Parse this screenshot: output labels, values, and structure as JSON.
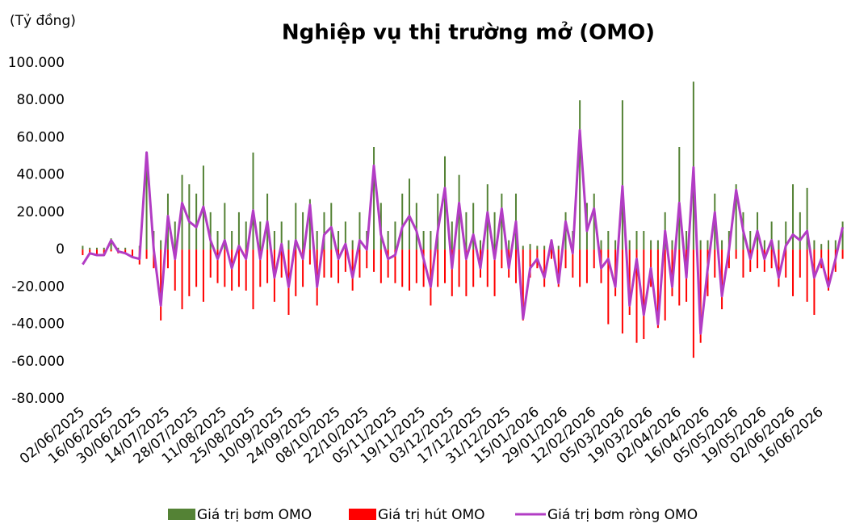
{
  "chart_data": {
    "type": "bar",
    "title": "Nghiệp vụ thị trường mở (OMO)",
    "ylabel": "(Tỷ đồng)",
    "ylim": [
      -80000,
      100000
    ],
    "yticks": [
      {
        "value": -80000,
        "label": "-80.000"
      },
      {
        "value": -60000,
        "label": "-60.000"
      },
      {
        "value": -40000,
        "label": "-40.000"
      },
      {
        "value": -20000,
        "label": "-20.000"
      },
      0,
      {
        "value": 20000,
        "label": "20.000"
      },
      {
        "value": 40000,
        "label": "40.000"
      },
      {
        "value": 60000,
        "label": "60.000"
      },
      {
        "value": 80000,
        "label": "80.000"
      },
      {
        "value": 100000,
        "label": "100.000"
      }
    ],
    "categories": [
      "02/06/2025",
      null,
      null,
      null,
      "16/06/2025",
      null,
      null,
      null,
      "30/06/2025",
      null,
      null,
      null,
      "14/07/2025",
      null,
      null,
      null,
      "28/07/2025",
      null,
      null,
      null,
      "11/08/2025",
      null,
      null,
      null,
      "25/08/2025",
      null,
      null,
      null,
      "10/09/2025",
      null,
      null,
      null,
      "24/09/2025",
      null,
      null,
      null,
      "08/10/2025",
      null,
      null,
      null,
      "22/10/2025",
      null,
      null,
      null,
      "05/11/2025",
      null,
      null,
      null,
      "19/11/2025",
      null,
      null,
      null,
      "03/12/2025",
      null,
      null,
      null,
      "17/12/2025",
      null,
      null,
      null,
      "31/12/2025",
      null,
      null,
      null,
      "15/01/2026",
      null,
      null,
      null,
      "29/01/2026",
      null,
      null,
      null,
      "12/02/2026",
      null,
      null,
      null,
      "05/03/2026",
      null,
      null,
      null,
      "19/03/2026",
      null,
      null,
      null,
      "02/04/2026",
      null,
      null,
      null,
      "16/04/2026",
      null,
      null,
      null,
      "05/05/2026",
      null,
      null,
      null,
      "19/05/2026",
      null,
      null,
      null,
      "02/06/2026",
      null,
      null,
      null,
      "16/06/2026",
      null,
      null,
      null
    ],
    "series": [
      {
        "name": "Giá trị bơm OMO",
        "type": "bar",
        "color": "#548235",
        "values": [
          2000,
          1000,
          1000,
          1000,
          6000,
          1000,
          1000,
          0,
          2000,
          52000,
          10000,
          5000,
          30000,
          15000,
          40000,
          35000,
          30000,
          45000,
          20000,
          10000,
          25000,
          10000,
          20000,
          15000,
          52000,
          15000,
          30000,
          10000,
          15000,
          5000,
          25000,
          20000,
          27000,
          10000,
          20000,
          25000,
          10000,
          15000,
          5000,
          20000,
          10000,
          55000,
          25000,
          10000,
          15000,
          30000,
          38000,
          25000,
          10000,
          10000,
          30000,
          50000,
          15000,
          40000,
          20000,
          25000,
          5000,
          35000,
          20000,
          30000,
          5000,
          30000,
          2000,
          3000,
          2000,
          2000,
          3000,
          2000,
          20000,
          10000,
          80000,
          25000,
          30000,
          5000,
          10000,
          5000,
          80000,
          5000,
          10000,
          10000,
          5000,
          5000,
          20000,
          5000,
          55000,
          10000,
          90000,
          5000,
          5000,
          30000,
          5000,
          10000,
          35000,
          20000,
          10000,
          20000,
          5000,
          15000,
          5000,
          15000,
          35000,
          20000,
          33000,
          5000,
          3000,
          5000,
          5000,
          15000
        ]
      },
      {
        "name": "Giá trị hút OMO",
        "type": "bar",
        "color": "#ff0000",
        "values": [
          -3000,
          -2000,
          -3000,
          -3000,
          -1000,
          -2000,
          -2000,
          -4000,
          -8000,
          -5000,
          -10000,
          -38000,
          -10000,
          -22000,
          -32000,
          -25000,
          -20000,
          -28000,
          -15000,
          -18000,
          -20000,
          -22000,
          -20000,
          -22000,
          -32000,
          -20000,
          -18000,
          -28000,
          -15000,
          -35000,
          -25000,
          -20000,
          -8000,
          -30000,
          -15000,
          -15000,
          -18000,
          -12000,
          -22000,
          -15000,
          -10000,
          -12000,
          -18000,
          -15000,
          -18000,
          -20000,
          -22000,
          -18000,
          -20000,
          -30000,
          -20000,
          -18000,
          -25000,
          -20000,
          -25000,
          -20000,
          -15000,
          -20000,
          -25000,
          -10000,
          -15000,
          -18000,
          -38000,
          -15000,
          -10000,
          -20000,
          -5000,
          -20000,
          -10000,
          -15000,
          -20000,
          -18000,
          -10000,
          -18000,
          -40000,
          -25000,
          -45000,
          -35000,
          -50000,
          -48000,
          -20000,
          -42000,
          -38000,
          -25000,
          -30000,
          -28000,
          -58000,
          -50000,
          -25000,
          -15000,
          -32000,
          -10000,
          -5000,
          -15000,
          -12000,
          -10000,
          -12000,
          -10000,
          -20000,
          -15000,
          -25000,
          -15000,
          -28000,
          -35000,
          -10000,
          -22000,
          -12000,
          -5000
        ]
      },
      {
        "name": "Giá trị bơm ròng OMO",
        "type": "line",
        "color": "#b23cc4",
        "values": [
          -8000,
          -2000,
          -3000,
          -3000,
          5000,
          -1000,
          -2000,
          -4000,
          -5000,
          52000,
          0,
          -30000,
          18000,
          -5000,
          25000,
          15000,
          12000,
          23000,
          5000,
          -5000,
          5000,
          -10000,
          2000,
          -5000,
          21000,
          -5000,
          15000,
          -15000,
          3000,
          -20000,
          5000,
          -5000,
          24000,
          -20000,
          8000,
          12000,
          -5000,
          3000,
          -15000,
          5000,
          0,
          45000,
          8000,
          -5000,
          -3000,
          12000,
          18000,
          10000,
          -5000,
          -20000,
          10000,
          33000,
          -10000,
          25000,
          -5000,
          8000,
          -10000,
          20000,
          -5000,
          22000,
          -10000,
          15000,
          -37000,
          -10000,
          -5000,
          -15000,
          5000,
          -18000,
          15000,
          -2000,
          64000,
          10000,
          22000,
          -10000,
          -5000,
          -20000,
          34000,
          -30000,
          -5000,
          -35000,
          -10000,
          -40000,
          10000,
          -20000,
          25000,
          -15000,
          44000,
          -45000,
          -10000,
          20000,
          -25000,
          0,
          32000,
          10000,
          -5000,
          10000,
          -5000,
          5000,
          -15000,
          2000,
          8000,
          5000,
          10000,
          -15000,
          -5000,
          -20000,
          -5000,
          12000
        ]
      }
    ]
  }
}
